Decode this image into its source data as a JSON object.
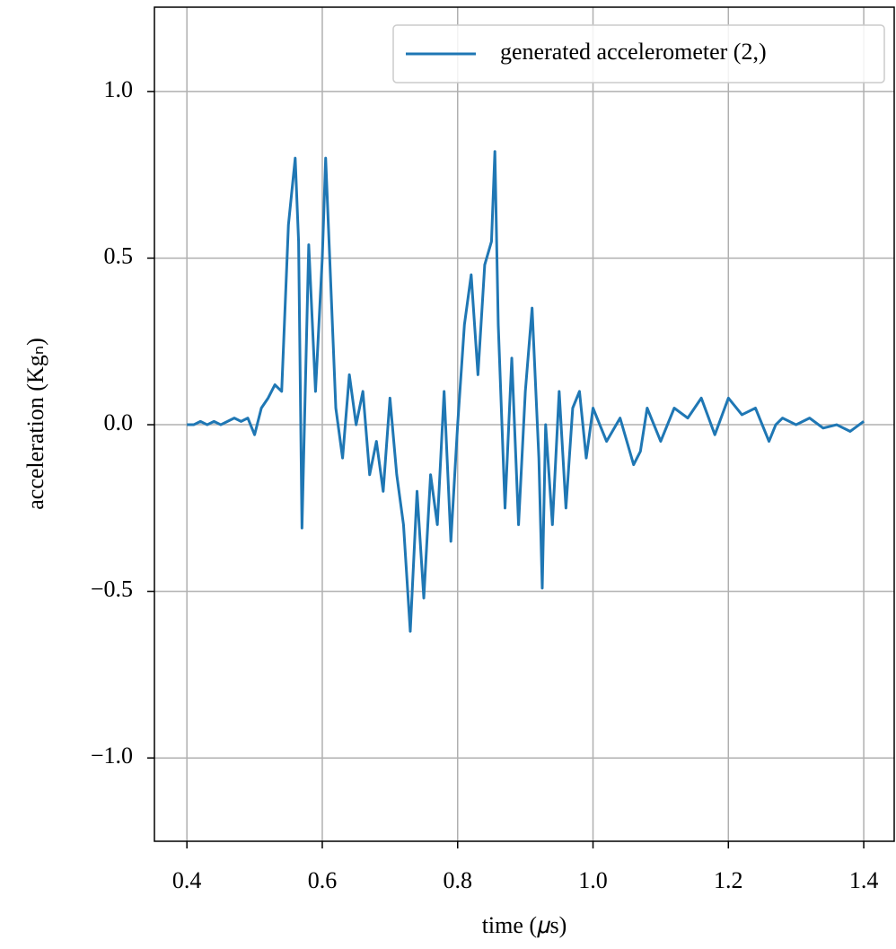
{
  "chart_data": {
    "type": "line",
    "xlabel": "time (𝜇s)",
    "ylabel": "acceleration (Kgₙ)",
    "x": [
      0.4,
      0.41,
      0.42,
      0.43,
      0.44,
      0.45,
      0.46,
      0.47,
      0.48,
      0.49,
      0.5,
      0.51,
      0.52,
      0.53,
      0.54,
      0.55,
      0.56,
      0.565,
      0.57,
      0.58,
      0.59,
      0.6,
      0.605,
      0.61,
      0.62,
      0.63,
      0.64,
      0.65,
      0.66,
      0.67,
      0.68,
      0.69,
      0.7,
      0.71,
      0.72,
      0.73,
      0.74,
      0.75,
      0.76,
      0.77,
      0.78,
      0.79,
      0.8,
      0.81,
      0.82,
      0.83,
      0.84,
      0.85,
      0.855,
      0.86,
      0.87,
      0.88,
      0.89,
      0.9,
      0.91,
      0.92,
      0.925,
      0.93,
      0.94,
      0.95,
      0.96,
      0.97,
      0.98,
      0.99,
      1.0,
      1.02,
      1.04,
      1.06,
      1.07,
      1.08,
      1.1,
      1.12,
      1.14,
      1.16,
      1.18,
      1.2,
      1.22,
      1.24,
      1.26,
      1.27,
      1.28,
      1.3,
      1.32,
      1.34,
      1.36,
      1.38,
      1.4
    ],
    "series": [
      {
        "name": "generated accelerometer (2,)",
        "color": "#1f77b4",
        "values": [
          0.0,
          0.0,
          0.01,
          0.0,
          0.01,
          0.0,
          0.01,
          0.02,
          0.01,
          0.02,
          -0.03,
          0.05,
          0.08,
          0.12,
          0.1,
          0.6,
          0.8,
          0.55,
          -0.31,
          0.54,
          0.1,
          0.5,
          0.8,
          0.55,
          0.05,
          -0.1,
          0.15,
          0.0,
          0.1,
          -0.15,
          -0.05,
          -0.2,
          0.08,
          -0.15,
          -0.3,
          -0.62,
          -0.2,
          -0.52,
          -0.15,
          -0.3,
          0.1,
          -0.35,
          0.0,
          0.3,
          0.45,
          0.15,
          0.48,
          0.55,
          0.82,
          0.3,
          -0.25,
          0.2,
          -0.3,
          0.1,
          0.35,
          -0.1,
          -0.49,
          0.0,
          -0.3,
          0.1,
          -0.25,
          0.05,
          0.1,
          -0.1,
          0.05,
          -0.05,
          0.02,
          -0.12,
          -0.08,
          0.05,
          -0.05,
          0.05,
          0.02,
          0.08,
          -0.03,
          0.08,
          0.03,
          0.05,
          -0.05,
          0.0,
          0.02,
          0.0,
          0.02,
          -0.01,
          0.0,
          -0.02,
          0.01
        ]
      }
    ],
    "xlim": [
      0.352,
      1.445
    ],
    "ylim": [
      -1.25,
      1.253
    ],
    "xticks": [
      0.4,
      0.6,
      0.8,
      {
        "value": 1,
        "label": "1.0"
      },
      1.2,
      1.4
    ],
    "yticks": [
      {
        "value": -1,
        "label": "−1.0"
      },
      {
        "value": -0.5,
        "label": "−0.5"
      },
      {
        "value": 0,
        "label": "0.0"
      },
      0.5,
      {
        "value": 1,
        "label": "1.0"
      }
    ],
    "grid": true,
    "legend": "upper right"
  }
}
